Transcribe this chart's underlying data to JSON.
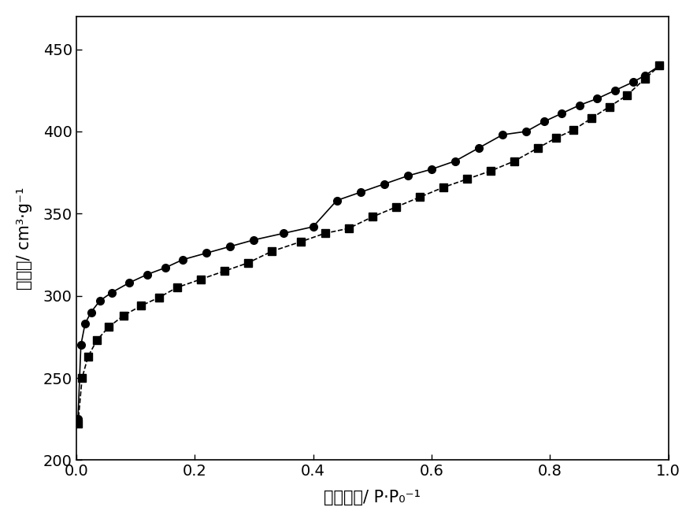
{
  "title": "",
  "xlabel": "相对压力/ P·P₀⁻¹",
  "ylabel": "吸附量/ cm³·g⁻¹",
  "xlim": [
    0.0,
    1.0
  ],
  "ylim": [
    200,
    470
  ],
  "xticks": [
    0.0,
    0.2,
    0.4,
    0.6,
    0.8,
    1.0
  ],
  "yticks": [
    200,
    250,
    300,
    350,
    400,
    450
  ],
  "background_color": "#ffffff",
  "line_color": "#000000",
  "circle_series": {
    "x": [
      0.003,
      0.008,
      0.015,
      0.025,
      0.04,
      0.06,
      0.09,
      0.12,
      0.15,
      0.18,
      0.22,
      0.26,
      0.3,
      0.35,
      0.4,
      0.44,
      0.48,
      0.52,
      0.56,
      0.6,
      0.64,
      0.68,
      0.72,
      0.76,
      0.79,
      0.82,
      0.85,
      0.88,
      0.91,
      0.94,
      0.96,
      0.985
    ],
    "y": [
      225,
      270,
      283,
      290,
      297,
      302,
      308,
      313,
      317,
      322,
      326,
      330,
      334,
      338,
      342,
      358,
      363,
      368,
      373,
      377,
      382,
      390,
      398,
      400,
      406,
      411,
      416,
      420,
      425,
      430,
      434,
      440
    ],
    "marker": "o",
    "markersize": 7,
    "linestyle": "-"
  },
  "square_series": {
    "x": [
      0.003,
      0.01,
      0.02,
      0.035,
      0.055,
      0.08,
      0.11,
      0.14,
      0.17,
      0.21,
      0.25,
      0.29,
      0.33,
      0.38,
      0.42,
      0.46,
      0.5,
      0.54,
      0.58,
      0.62,
      0.66,
      0.7,
      0.74,
      0.78,
      0.81,
      0.84,
      0.87,
      0.9,
      0.93,
      0.96,
      0.985
    ],
    "y": [
      222,
      250,
      263,
      273,
      281,
      288,
      294,
      299,
      305,
      310,
      315,
      320,
      327,
      333,
      338,
      341,
      348,
      354,
      360,
      366,
      371,
      376,
      382,
      390,
      396,
      401,
      408,
      415,
      422,
      432,
      440
    ],
    "marker": "s",
    "markersize": 7,
    "linestyle": "--"
  }
}
